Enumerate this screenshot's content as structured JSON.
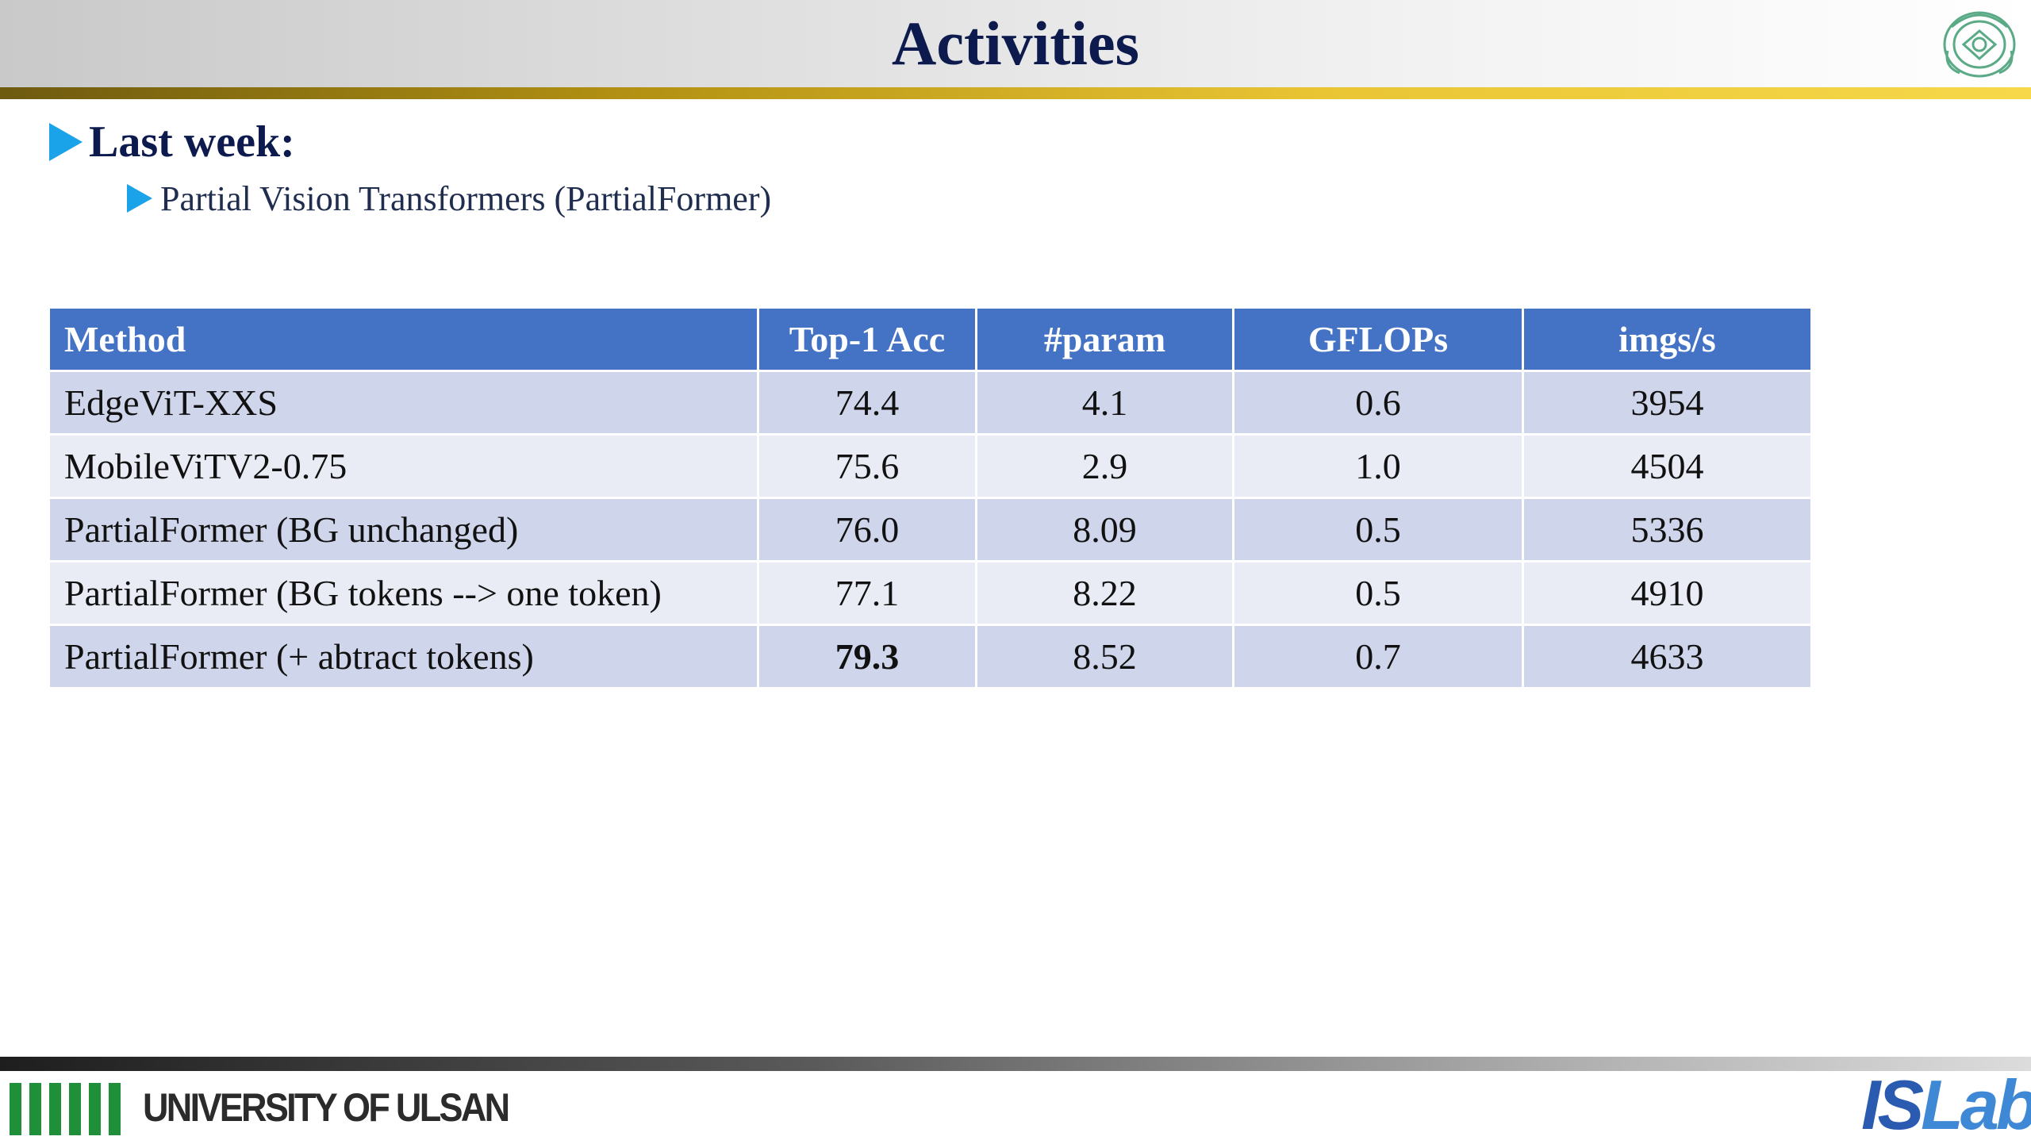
{
  "slide": {
    "title": "Activities",
    "bullets": {
      "level1": "Last week:",
      "level2": "Partial Vision Transformers (PartialFormer)"
    }
  },
  "table": {
    "headers": [
      "Method",
      "Top-1 Acc",
      "#param",
      "GFLOPs",
      "imgs/s"
    ],
    "rows": [
      [
        "EdgeViT-XXS",
        "74.4",
        "4.1",
        "0.6",
        "3954"
      ],
      [
        "MobileViTV2-0.75",
        "75.6",
        "2.9",
        "1.0",
        "4504"
      ],
      [
        "PartialFormer (BG unchanged)",
        "76.0",
        "8.09",
        "0.5",
        "5336"
      ],
      [
        "PartialFormer (BG tokens --> one token)",
        "77.1",
        "8.22",
        "0.5",
        "4910"
      ],
      [
        "PartialFormer (+ abtract tokens)",
        "79.3",
        "8.52",
        "0.7",
        "4633"
      ]
    ]
  },
  "footer": {
    "university": "UNIVERSITY OF ULSAN",
    "lab_prefix": "IS",
    "lab_suffix": "Lab"
  },
  "colors": {
    "header_fill": "#4472c4",
    "row_dark": "#cfd5ea",
    "row_light": "#e9ebf5",
    "bullet_arrow": "#1aa3e8",
    "title_text": "#0d1a4d",
    "gold_rule": "#e9c534",
    "uou_green": "#1f8f3a"
  },
  "icons": {
    "seal": "university-seal-icon",
    "bullet": "triangle-right-icon"
  }
}
